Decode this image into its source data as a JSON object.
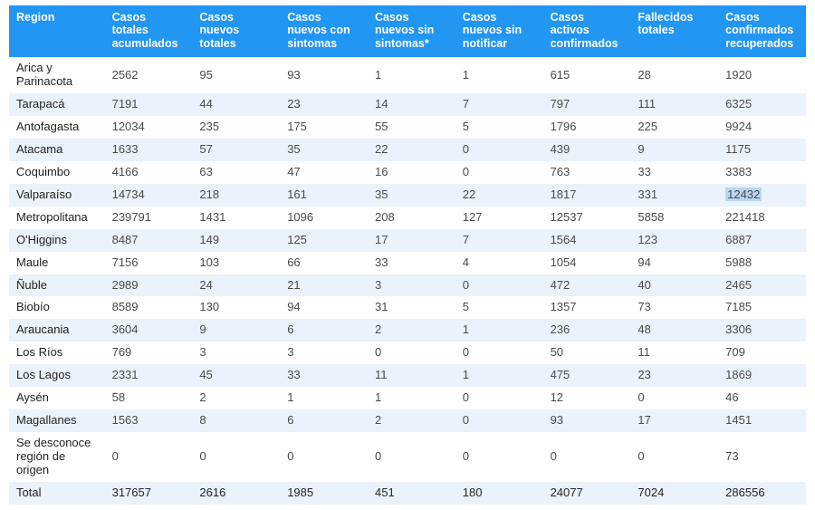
{
  "table": {
    "header_bg": "#2196f3",
    "header_fg": "#ffffff",
    "row_alt_bg": "#eaf3fb",
    "highlight_bg": "#b9d6f2",
    "text_color": "#4a4a4a",
    "font_size": 13,
    "columns": [
      "Region",
      "Casos totales acumulados",
      "Casos nuevos totales",
      "Casos nuevos con sintomas",
      "Casos nuevos sin sintomas*",
      "Casos nuevos sin notificar",
      "Casos activos confirmados",
      "Fallecidos totales",
      "Casos confirmados recuperados"
    ],
    "highlight": {
      "row": 5,
      "col": 8
    },
    "rows": [
      [
        "Arica y Parinacota",
        "2562",
        "95",
        "93",
        "1",
        "1",
        "615",
        "28",
        "1920"
      ],
      [
        "Tarapacá",
        "7191",
        "44",
        "23",
        "14",
        "7",
        "797",
        "111",
        "6325"
      ],
      [
        "Antofagasta",
        "12034",
        "235",
        "175",
        "55",
        "5",
        "1796",
        "225",
        "9924"
      ],
      [
        "Atacama",
        "1633",
        "57",
        "35",
        "22",
        "0",
        "439",
        "9",
        "1175"
      ],
      [
        "Coquimbo",
        "4166",
        "63",
        "47",
        "16",
        "0",
        "763",
        "33",
        "3383"
      ],
      [
        "Valparaíso",
        "14734",
        "218",
        "161",
        "35",
        "22",
        "1817",
        "331",
        "12432"
      ],
      [
        "Metropolitana",
        "239791",
        "1431",
        "1096",
        "208",
        "127",
        "12537",
        "5858",
        "221418"
      ],
      [
        "O'Higgins",
        "8487",
        "149",
        "125",
        "17",
        "7",
        "1564",
        "123",
        "6887"
      ],
      [
        "Maule",
        "7156",
        "103",
        "66",
        "33",
        "4",
        "1054",
        "94",
        "5988"
      ],
      [
        "Ñuble",
        "2989",
        "24",
        "21",
        "3",
        "0",
        "472",
        "40",
        "2465"
      ],
      [
        "Biobío",
        "8589",
        "130",
        "94",
        "31",
        "5",
        "1357",
        "73",
        "7185"
      ],
      [
        "Araucania",
        "3604",
        "9",
        "6",
        "2",
        "1",
        "236",
        "48",
        "3306"
      ],
      [
        "Los Ríos",
        "769",
        "3",
        "3",
        "0",
        "0",
        "50",
        "11",
        "709"
      ],
      [
        "Los Lagos",
        "2331",
        "45",
        "33",
        "11",
        "1",
        "475",
        "23",
        "1869"
      ],
      [
        "Aysén",
        "58",
        "2",
        "1",
        "1",
        "0",
        "12",
        "0",
        "46"
      ],
      [
        "Magallanes",
        "1563",
        "8",
        "6",
        "2",
        "0",
        "93",
        "17",
        "1451"
      ],
      [
        "Se desconoce región de origen",
        "0",
        "0",
        "0",
        "0",
        "0",
        "0",
        "0",
        "73"
      ]
    ],
    "total_row": [
      "Total",
      "317657",
      "2616",
      "1985",
      "451",
      "180",
      "24077",
      "7024",
      "286556"
    ]
  }
}
